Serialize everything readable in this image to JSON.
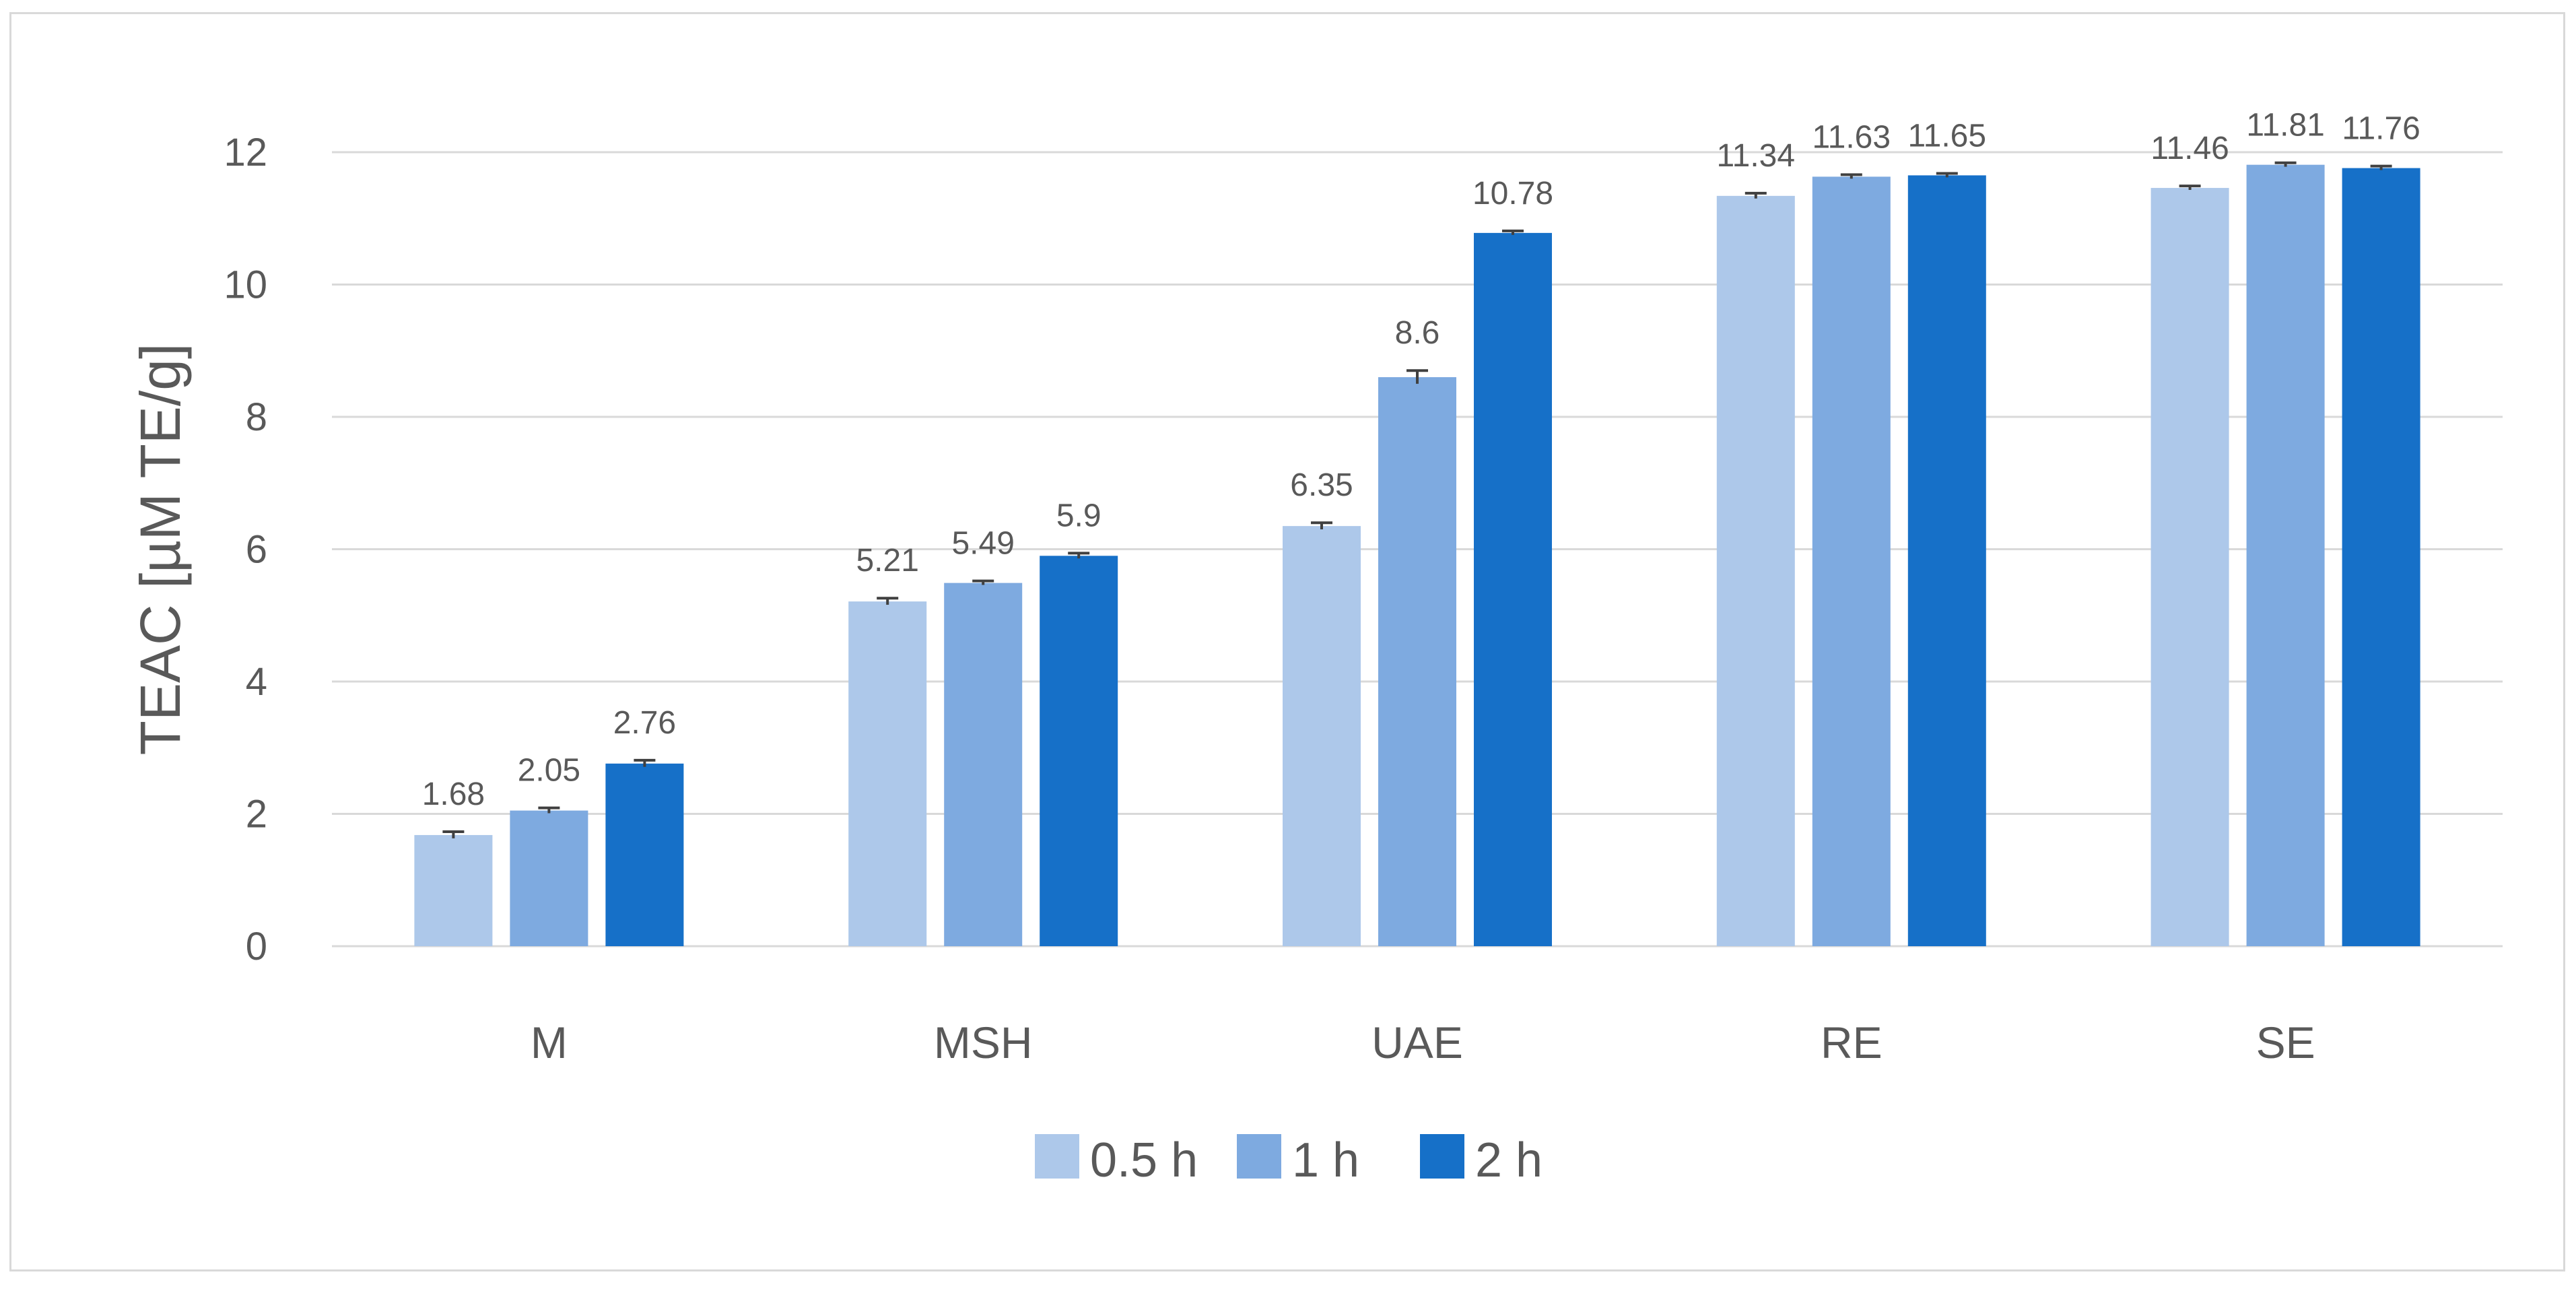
{
  "chart_data": {
    "type": "bar",
    "title": "",
    "xlabel": "",
    "ylabel": "TEAC [µM TE/g]",
    "ylim": [
      0,
      12
    ],
    "yticks": [
      "0",
      "2",
      "4",
      "6",
      "8",
      "10",
      "12"
    ],
    "grid": true,
    "legend_position": "bottom",
    "categories": [
      "M",
      "MSH",
      "UAE",
      "RE",
      "SE"
    ],
    "series": [
      {
        "name": "0.5 h",
        "color": "#adc8ea",
        "values": [
          1.68,
          5.21,
          6.35,
          11.34,
          11.46
        ],
        "labels": [
          "1.68",
          "5.21",
          "6.35",
          "11.34",
          "11.46"
        ],
        "errors": [
          0.05,
          0.05,
          0.05,
          0.04,
          0.03
        ]
      },
      {
        "name": "1 h",
        "color": "#7eaae0",
        "values": [
          2.05,
          5.49,
          8.6,
          11.63,
          11.81
        ],
        "labels": [
          "2.05",
          "5.49",
          "8.6",
          "11.63",
          "11.81"
        ],
        "errors": [
          0.04,
          0.03,
          0.1,
          0.03,
          0.03
        ]
      },
      {
        "name": "2 h",
        "color": "#1670c8",
        "values": [
          2.76,
          5.9,
          10.78,
          11.65,
          11.76
        ],
        "labels": [
          "2.76",
          "5.9",
          "10.78",
          "11.65",
          "11.76"
        ],
        "errors": [
          0.05,
          0.04,
          0.03,
          0.03,
          0.03
        ]
      }
    ]
  }
}
